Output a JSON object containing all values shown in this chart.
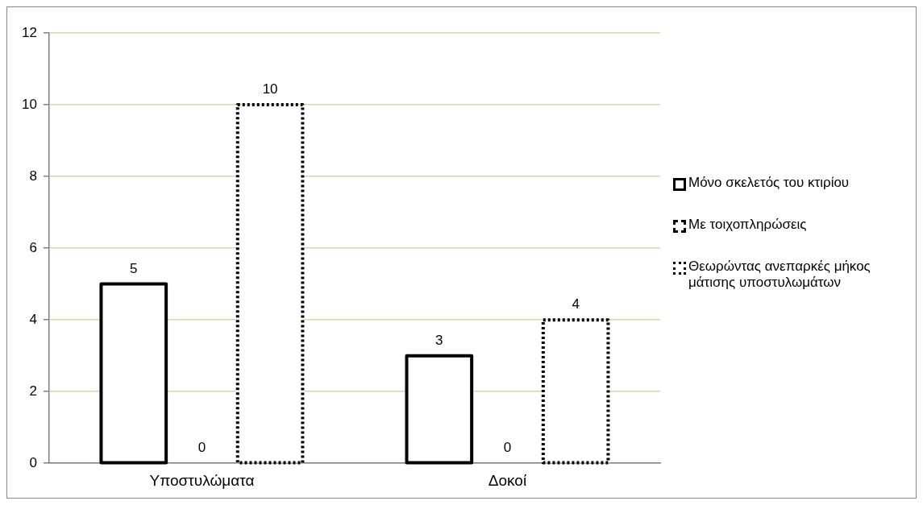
{
  "chart_data": {
    "type": "bar",
    "categories": [
      "Υποστυλώματα",
      "Δοκοί"
    ],
    "series": [
      {
        "name": "Μόνο σκελετός του κτιρίου",
        "color": "#000000",
        "line_style": "solid",
        "values": [
          5,
          3
        ]
      },
      {
        "name": "Με τοιχοπληρώσεις",
        "color": "#000000",
        "line_style": "dashed",
        "values": [
          0,
          0
        ]
      },
      {
        "name": "Θεωρώντας ανεπαρκές μήκος μάτισης υποστυλωμάτων",
        "color": "#000000",
        "line_style": "dotted",
        "values": [
          10,
          4
        ]
      }
    ],
    "ylim": [
      0,
      12
    ],
    "yticks": [
      0,
      2,
      4,
      6,
      8,
      10,
      12
    ],
    "grid": "y",
    "legend": "right",
    "data_labels": true
  }
}
